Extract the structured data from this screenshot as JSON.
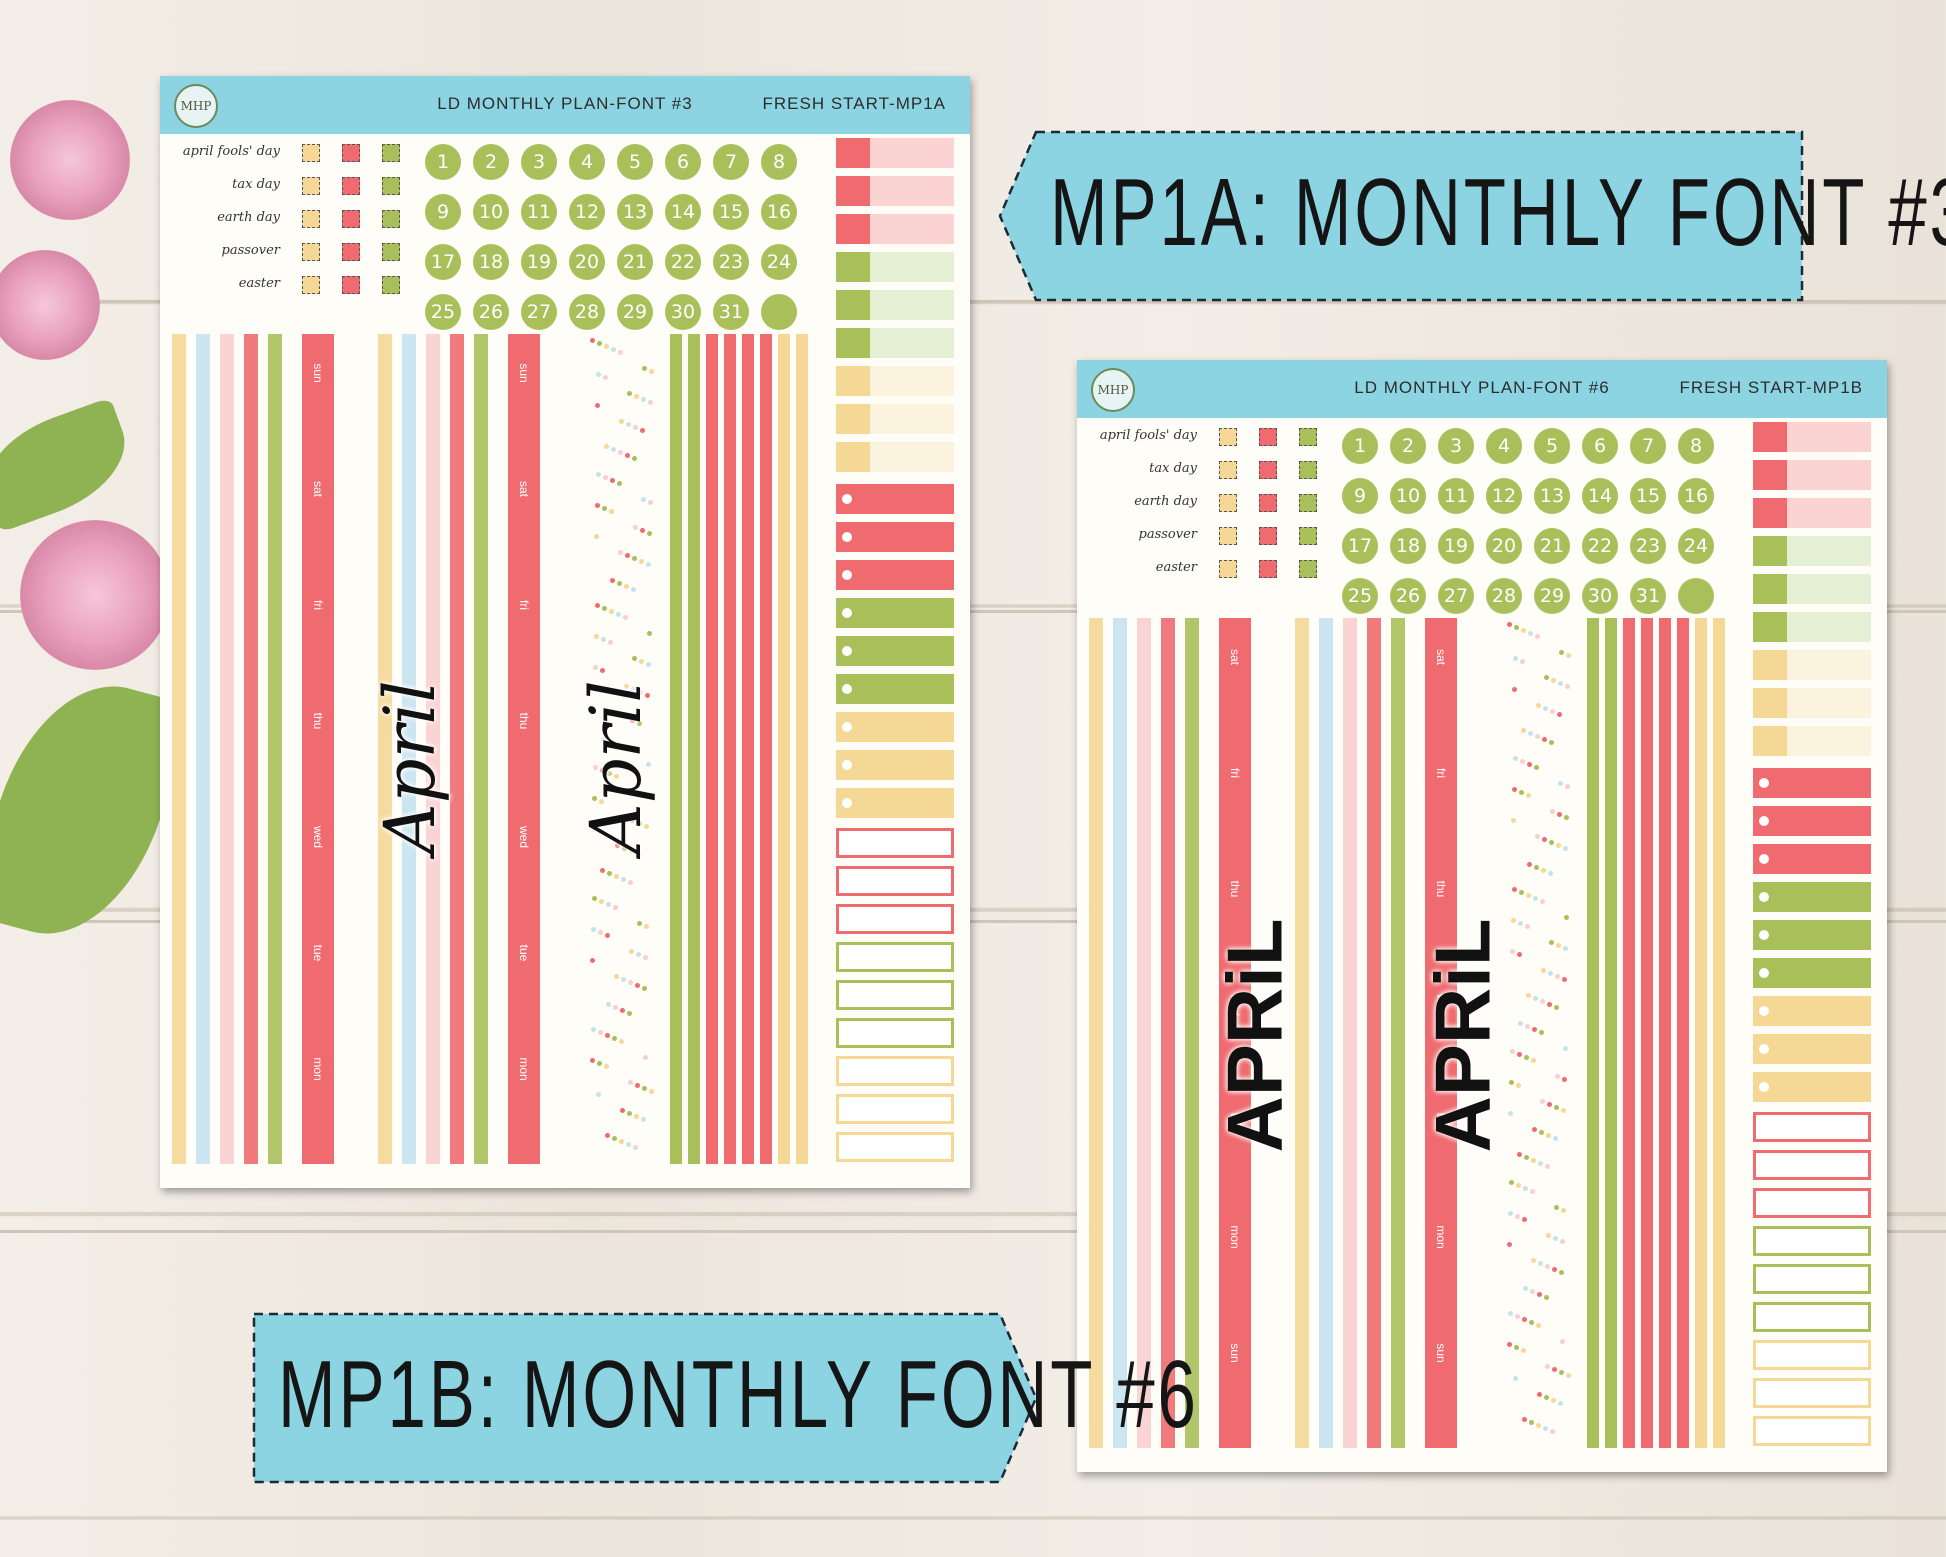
{
  "banners": {
    "a": "MP1A: MONTHLY FONT #3",
    "b": "MP1B: MONTHLY FONT #6"
  },
  "sheets": [
    {
      "logo": "MHP",
      "title": "LD MONTHLY PLAN-FONT #3",
      "code": "FRESH START-MP1A",
      "month": "April"
    },
    {
      "logo": "MHP",
      "title": "LD MONTHLY PLAN-FONT #6",
      "code": "FRESH START-MP1B",
      "month": "APRiL"
    }
  ],
  "holidays": [
    "april fools' day",
    "tax day",
    "earth day",
    "passover",
    "easter"
  ],
  "dates": [
    "1",
    "2",
    "3",
    "4",
    "5",
    "6",
    "7",
    "8",
    "9",
    "10",
    "11",
    "12",
    "13",
    "14",
    "15",
    "16",
    "17",
    "18",
    "19",
    "20",
    "21",
    "22",
    "23",
    "24",
    "25",
    "26",
    "27",
    "28",
    "29",
    "30",
    "31",
    ""
  ],
  "weeks_sun": [
    "sun",
    "sat",
    "fri",
    "thu",
    "wed",
    "tue",
    "mon"
  ],
  "weeks_mon": [
    "sat",
    "fri",
    "thu",
    "wed",
    "tue",
    "mon",
    "sun"
  ],
  "colors": {
    "header": "#8dd4e2",
    "red": "#ef6b6f",
    "green": "#a8bf5a",
    "yellow": "#f5d796",
    "pink": "#f9cfcf",
    "blue": "#c5e3ee"
  }
}
